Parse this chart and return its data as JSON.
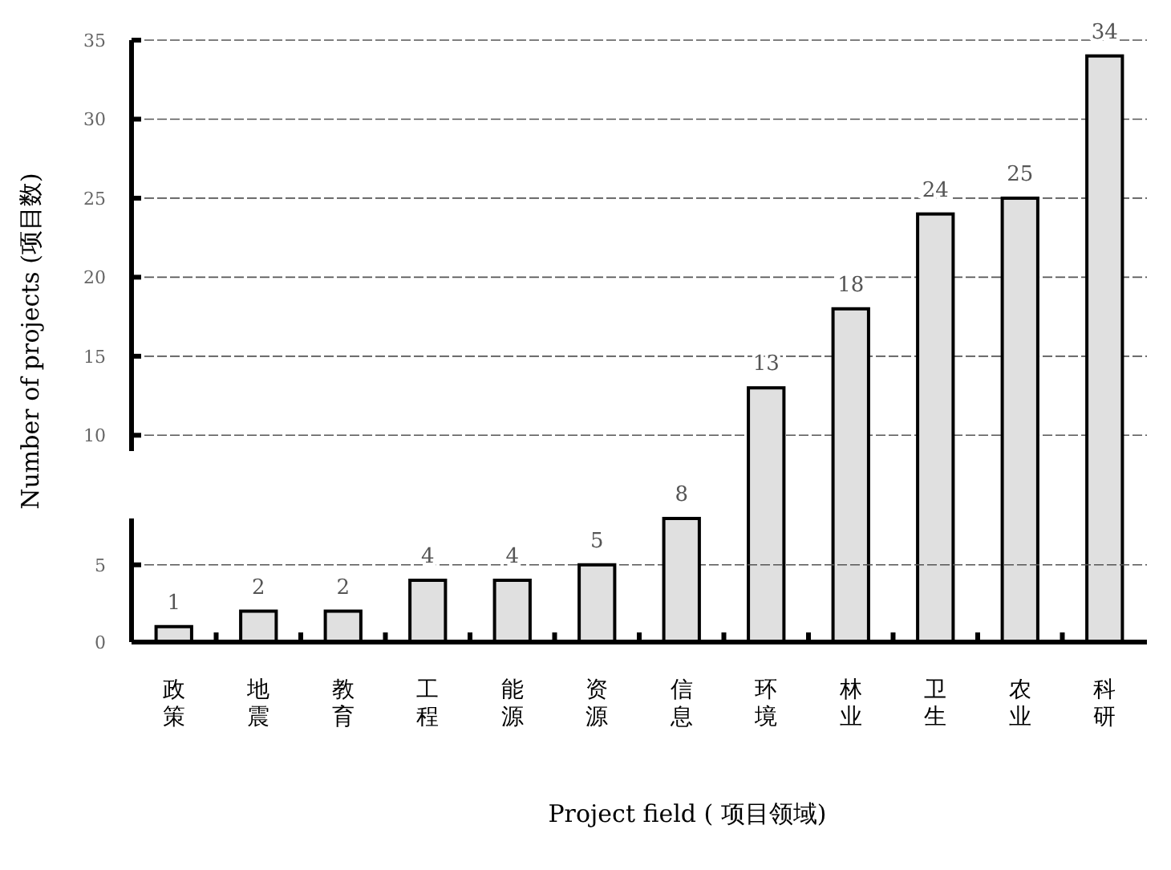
{
  "chart_data": [
    {
      "type": "bar",
      "ylabel": "Number of projects (项目数)",
      "categories": [
        "政策",
        "地震",
        "教育",
        "工程",
        "能源",
        "资源",
        "信息",
        "环境",
        "林业",
        "卫生",
        "农业",
        "科研"
      ],
      "values": [
        null,
        null,
        null,
        null,
        null,
        null,
        null,
        13,
        18,
        24,
        25,
        34
      ],
      "value_labels": [
        null,
        null,
        null,
        null,
        null,
        null,
        null,
        "13",
        "18",
        "24",
        "25",
        "34"
      ],
      "color": "#e0e0e0",
      "ylim": [
        9,
        35
      ],
      "yticks": [
        10,
        15,
        20,
        25,
        30,
        35
      ],
      "grid": "y",
      "tick_labels": "y"
    },
    {
      "type": "bar",
      "xlabel": "Project field ( 项目领域)",
      "categories": [
        "政策",
        "地震",
        "教育",
        "工程",
        "能源",
        "资源",
        "信息",
        "环境",
        "林业",
        "卫生",
        "农业",
        "科研"
      ],
      "values": [
        1,
        2,
        2,
        4,
        4,
        5,
        8,
        null,
        null,
        null,
        null,
        null
      ],
      "value_labels": [
        "1",
        "2",
        "2",
        "4",
        "4",
        "5",
        "8",
        null,
        null,
        null,
        null,
        null
      ],
      "color": "#e0e0e0",
      "ylim": [
        0,
        8
      ],
      "yticks": [
        0,
        5
      ],
      "grid": "y"
    }
  ]
}
